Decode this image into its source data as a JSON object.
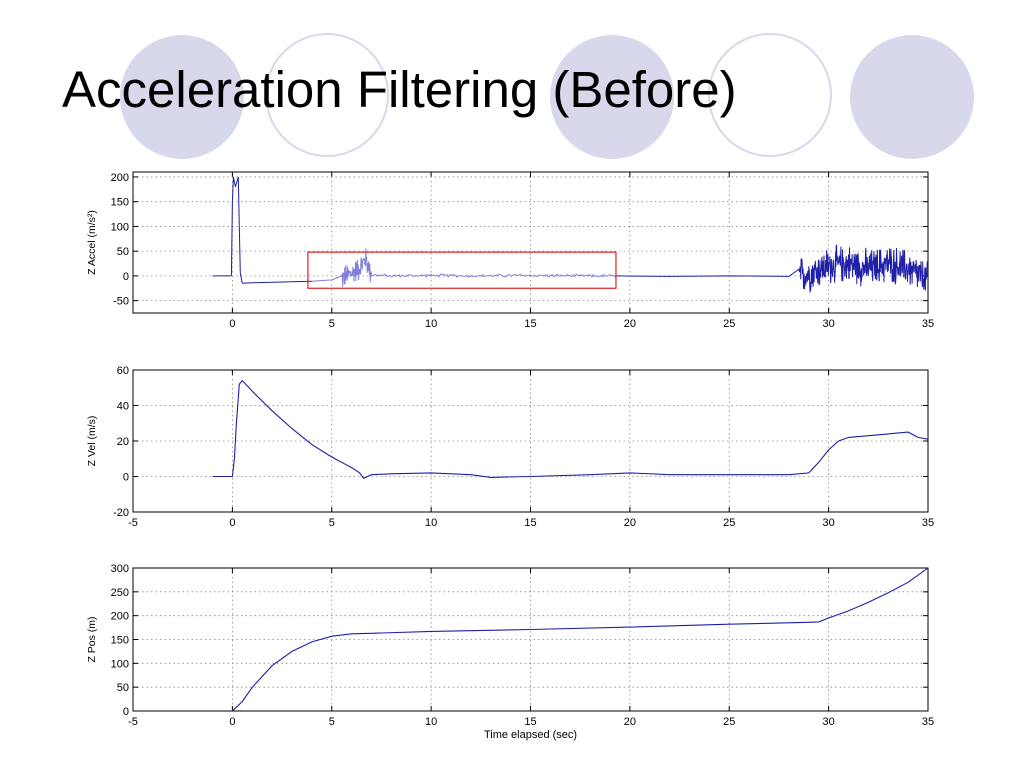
{
  "slide": {
    "title": "Acceleration Filtering (Before)"
  },
  "theme": {
    "circle_fill": "#d8d8ec",
    "circle_ring": "#d8d8ec",
    "line_color": "#1f1fa8",
    "highlight_line_color": "#8080d8",
    "highlight_box_color": "#e02020",
    "grid_color": "#888888"
  },
  "chart_data": [
    {
      "type": "line",
      "id": "accel",
      "xlabel": "",
      "ylabel": "Z Accel (m/s²)",
      "xlim": [
        -5,
        35
      ],
      "ylim": [
        -75,
        210
      ],
      "xticks": [
        -5,
        0,
        5,
        10,
        15,
        20,
        25,
        30,
        35
      ],
      "xtick_labels": [
        "",
        "0",
        "5",
        "10",
        "15",
        "20",
        "25",
        "30",
        "35"
      ],
      "yticks": [
        -50,
        0,
        50,
        100,
        150,
        200
      ],
      "ytick_labels": [
        "-50",
        "0",
        "50",
        "100",
        "150",
        "200"
      ],
      "grid": true,
      "highlight_box": {
        "x": [
          3.8,
          19.3
        ],
        "y": [
          -25,
          48
        ]
      },
      "noise_regions": [
        {
          "x": [
            5.2,
            7.0
          ],
          "amplitude": 30
        },
        {
          "x": [
            7.0,
            19.3
          ],
          "amplitude": 4
        },
        {
          "x": [
            28.5,
            35
          ],
          "amplitude": 45
        }
      ],
      "series": [
        {
          "x": [
            -1.0,
            -0.05,
            0.0,
            0.05,
            0.15,
            0.3,
            0.35,
            0.4,
            0.5,
            1.0,
            2.0,
            3.0,
            4.0,
            5.0,
            5.5,
            6.0,
            6.5,
            6.7,
            7.0,
            8.0,
            10.0,
            12.0,
            15.0,
            18.0,
            19.3,
            22.0,
            25.0,
            28.0,
            28.5,
            29.0,
            30.0,
            31.0,
            32.0,
            33.0,
            34.0,
            35.0
          ],
          "y": [
            0,
            0,
            150,
            200,
            180,
            200,
            100,
            5,
            -15,
            -14,
            -13,
            -12,
            -11,
            -8,
            -5,
            5,
            20,
            35,
            2,
            0,
            1,
            0,
            1,
            0,
            0,
            -1,
            0,
            -1,
            0,
            5,
            20,
            25,
            15,
            25,
            15,
            -10
          ]
        }
      ]
    },
    {
      "type": "line",
      "id": "vel",
      "xlabel": "",
      "ylabel": "Z Vel (m/s)",
      "xlim": [
        -5,
        35
      ],
      "ylim": [
        -20,
        60
      ],
      "xticks": [
        -5,
        0,
        5,
        10,
        15,
        20,
        25,
        30,
        35
      ],
      "xtick_labels": [
        "-5",
        "0",
        "5",
        "10",
        "15",
        "20",
        "25",
        "30",
        "35"
      ],
      "yticks": [
        -20,
        0,
        20,
        40,
        60
      ],
      "ytick_labels": [
        "-20",
        "0",
        "20",
        "40",
        "60"
      ],
      "grid": true,
      "series": [
        {
          "x": [
            -1.0,
            0.0,
            0.1,
            0.2,
            0.35,
            0.5,
            1.0,
            2.0,
            3.0,
            4.0,
            5.0,
            5.5,
            6.0,
            6.4,
            6.6,
            7.0,
            8.0,
            10.0,
            12.0,
            13.0,
            15.0,
            18.0,
            20.0,
            22.0,
            25.0,
            28.0,
            29.0,
            29.5,
            30.0,
            30.5,
            31.0,
            32.0,
            33.0,
            34.0,
            34.5,
            35.0
          ],
          "y": [
            0,
            0,
            10,
            30,
            52,
            54,
            48,
            37,
            27,
            18,
            11,
            8,
            5,
            2,
            -1,
            1,
            1.5,
            2,
            1,
            -0.5,
            0,
            1,
            2,
            1,
            1,
            1,
            2,
            8,
            15,
            20,
            22,
            23,
            24,
            25,
            22,
            21
          ]
        }
      ]
    },
    {
      "type": "line",
      "id": "pos",
      "xlabel": "Time elapsed (sec)",
      "ylabel": "Z Pos (m)",
      "xlim": [
        -5,
        35
      ],
      "ylim": [
        0,
        300
      ],
      "xticks": [
        -5,
        0,
        5,
        10,
        15,
        20,
        25,
        30,
        35
      ],
      "xtick_labels": [
        "-5",
        "0",
        "5",
        "10",
        "15",
        "20",
        "25",
        "30",
        "35"
      ],
      "yticks": [
        0,
        50,
        100,
        150,
        200,
        250,
        300
      ],
      "ytick_labels": [
        "0",
        "50",
        "100",
        "150",
        "200",
        "250",
        "300"
      ],
      "grid": true,
      "series": [
        {
          "x": [
            0.0,
            0.5,
            1.0,
            2.0,
            3.0,
            4.0,
            5.0,
            6.0,
            7.0,
            10.0,
            15.0,
            20.0,
            25.0,
            29.0,
            29.5,
            30.0,
            31.0,
            32.0,
            33.0,
            34.0,
            35.0
          ],
          "y": [
            0,
            20,
            50,
            95,
            125,
            145,
            157,
            162,
            163,
            167,
            171,
            176,
            182,
            186,
            187,
            195,
            210,
            228,
            248,
            270,
            300
          ]
        }
      ]
    }
  ]
}
